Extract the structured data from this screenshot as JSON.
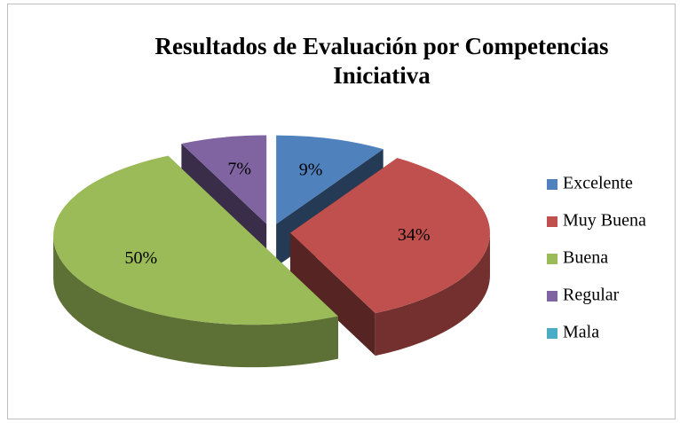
{
  "chart_data": {
    "type": "pie3d",
    "title": [
      "Resultados de Evaluación por Competencias",
      "Iniciativa"
    ],
    "categories": [
      "Excelente",
      "Muy Buena",
      "Buena",
      "Regular",
      "Mala"
    ],
    "values": [
      9,
      34,
      50,
      7,
      0
    ],
    "value_labels": [
      "9%",
      "34%",
      "50%",
      "7%",
      null
    ],
    "colors": [
      "#4f81bd",
      "#c0504d",
      "#9bbb59",
      "#8064a2",
      "#4bacc6"
    ],
    "legend": "right"
  }
}
